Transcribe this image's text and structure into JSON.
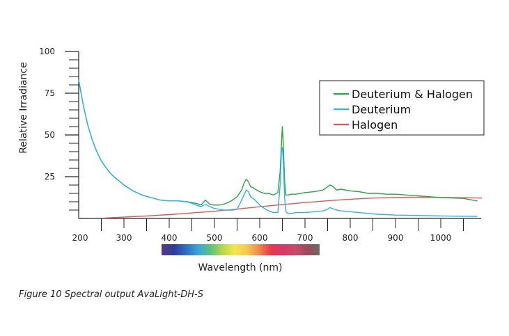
{
  "caption": "Figure 10 Spectral output AvaLight-DH-S",
  "chart_data": {
    "type": "line",
    "title": "",
    "xlabel": "Wavelength (nm)",
    "ylabel": "Relative Irradiance",
    "xlim": [
      200,
      1100
    ],
    "ylim": [
      0,
      100
    ],
    "x_ticks": [
      200,
      300,
      400,
      500,
      600,
      700,
      800,
      900,
      1000
    ],
    "y_ticks": [
      25,
      50,
      75,
      100
    ],
    "grid": false,
    "legend": "top-right",
    "colors": {
      "Deuterium & Halogen": "#2aa545",
      "Deuterium": "#2fb3e6",
      "Halogen": "#e05555"
    },
    "spectrum_bar_stops": [
      "#5a3a8a",
      "#2d3c9c",
      "#2d6fbf",
      "#37a6d9",
      "#59c27c",
      "#b8d64a",
      "#f2e84a",
      "#f7c94e",
      "#f08a4a",
      "#e8374f",
      "#d93865",
      "#c94a6a",
      "#9a4a5a",
      "#6e6a64"
    ],
    "series": [
      {
        "name": "Deuterium & Halogen",
        "x": [
          200,
          210,
          220,
          230,
          240,
          250,
          260,
          270,
          280,
          300,
          320,
          340,
          360,
          380,
          400,
          420,
          440,
          460,
          470,
          480,
          490,
          500,
          510,
          520,
          530,
          540,
          550,
          560,
          565,
          570,
          575,
          580,
          585,
          590,
          600,
          610,
          620,
          630,
          640,
          645,
          648,
          650,
          652,
          655,
          658,
          662,
          670,
          680,
          700,
          720,
          740,
          750,
          755,
          760,
          770,
          780,
          800,
          820,
          840,
          860,
          880,
          900,
          950,
          1000,
          1050,
          1080
        ],
        "y": [
          83,
          68,
          56,
          47,
          40,
          34.5,
          30.5,
          27,
          24.5,
          20,
          16.5,
          14,
          12.5,
          11,
          10.5,
          10.5,
          10,
          9,
          8,
          11,
          8.5,
          8,
          8,
          8.5,
          9.5,
          11,
          13,
          17,
          21,
          23.5,
          22,
          19,
          18.5,
          17.5,
          16,
          15,
          15,
          14,
          15.5,
          28,
          45,
          55,
          45,
          22,
          14,
          14,
          14.5,
          14.5,
          15.5,
          16,
          17,
          19,
          20,
          19.5,
          17,
          17.5,
          16.5,
          16,
          15,
          15,
          14.5,
          14.5,
          13.5,
          12.5,
          12,
          10.5
        ]
      },
      {
        "name": "Deuterium",
        "x": [
          200,
          210,
          220,
          230,
          240,
          250,
          260,
          270,
          280,
          300,
          320,
          340,
          360,
          380,
          400,
          420,
          440,
          460,
          470,
          480,
          490,
          500,
          510,
          520,
          530,
          540,
          550,
          560,
          565,
          570,
          575,
          580,
          585,
          590,
          600,
          610,
          620,
          630,
          640,
          645,
          648,
          650,
          652,
          655,
          658,
          662,
          670,
          680,
          700,
          720,
          740,
          750,
          755,
          760,
          770,
          780,
          800,
          820,
          840,
          860,
          880,
          900,
          950,
          1000,
          1050,
          1080
        ],
        "y": [
          83,
          68,
          56,
          47,
          40,
          34.5,
          30.5,
          27,
          24.5,
          20,
          16.5,
          14,
          12.5,
          11,
          10.5,
          10.5,
          10,
          8,
          7,
          8.5,
          7,
          6,
          5.5,
          5,
          5,
          5,
          5.5,
          11,
          14,
          17,
          16,
          13,
          12,
          11,
          8,
          6,
          4.5,
          3.5,
          3.5,
          20,
          40,
          42.5,
          35,
          12,
          4,
          3,
          3,
          3.5,
          3.5,
          4,
          4.5,
          5.5,
          6.5,
          6,
          5,
          4.5,
          4,
          3.5,
          3,
          2.5,
          2.3,
          2,
          1.8,
          1.5,
          1.3,
          1.2
        ]
      },
      {
        "name": "Halogen",
        "x": [
          260,
          300,
          350,
          400,
          450,
          500,
          550,
          600,
          650,
          700,
          750,
          800,
          850,
          900,
          950,
          1000,
          1050,
          1090
        ],
        "y": [
          0.3,
          0.8,
          1.5,
          2.3,
          3.3,
          4.3,
          5.6,
          7,
          8.3,
          9.5,
          10.6,
          11.5,
          12.2,
          12.6,
          12.7,
          12.6,
          12.4,
          12.2
        ]
      }
    ]
  }
}
